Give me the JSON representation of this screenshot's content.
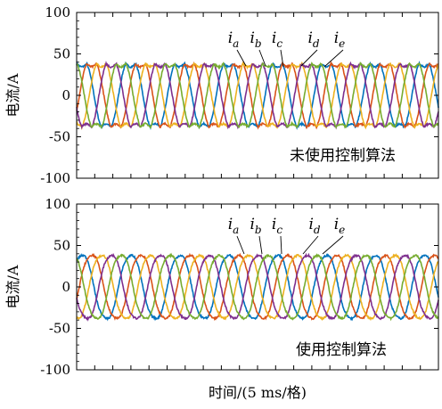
{
  "chart_data": [
    {
      "type": "line",
      "ylabel": "电流/A",
      "ylim": [
        -100,
        100
      ],
      "yticks": [
        -100,
        -50,
        0,
        50,
        100
      ],
      "annotation": "未使用控制算法",
      "legend_labels": [
        {
          "base": "i",
          "sub": "a"
        },
        {
          "base": "i",
          "sub": "b"
        },
        {
          "base": "i",
          "sub": "c"
        },
        {
          "base": "i",
          "sub": "d"
        },
        {
          "base": "i",
          "sub": "e"
        }
      ],
      "series_shape": "flat-topped",
      "amplitude": 40,
      "cycles": 7.4,
      "phase_offset_deg": 72,
      "colors": [
        "#0072BD",
        "#D95319",
        "#EDB120",
        "#7E2F8E",
        "#77AC30"
      ]
    },
    {
      "type": "line",
      "ylabel": "电流/A",
      "xlabel": "时间/(5 ms/格)",
      "ylim": [
        -100,
        100
      ],
      "yticks": [
        -100,
        -50,
        0,
        50,
        100
      ],
      "annotation": "使用控制算法",
      "legend_labels": [
        {
          "base": "i",
          "sub": "a"
        },
        {
          "base": "i",
          "sub": "b"
        },
        {
          "base": "i",
          "sub": "c"
        },
        {
          "base": "i",
          "sub": "d"
        },
        {
          "base": "i",
          "sub": "e"
        }
      ],
      "series_shape": "sinusoidal",
      "amplitude": 40,
      "cycles": 7.4,
      "phase_offset_deg": 72,
      "colors": [
        "#0072BD",
        "#D95319",
        "#EDB120",
        "#7E2F8E",
        "#77AC30"
      ]
    }
  ]
}
